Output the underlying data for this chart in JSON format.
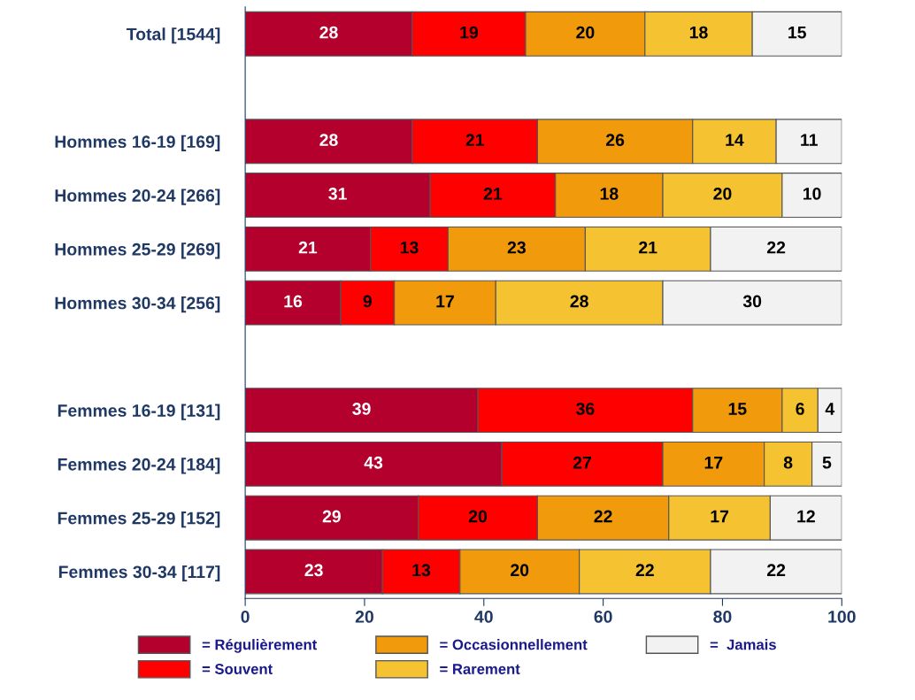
{
  "chart_data": {
    "type": "bar",
    "orientation": "horizontal",
    "stacked": true,
    "data_labels": true,
    "grid": false,
    "legend": "bottom",
    "categories": [
      "Total [1544]",
      null,
      "Hommes 16-19 [169]",
      "Hommes 20-24 [266]",
      "Hommes 25-29 [269]",
      "Hommes 30-34 [256]",
      null,
      "Femmes 16-19 [131]",
      "Femmes 20-24 [184]",
      "Femmes 25-29 [152]",
      "Femmes 30-34 [117]"
    ],
    "xlim": [
      0,
      100
    ],
    "xticks": [
      0,
      20,
      40,
      60,
      80,
      100
    ],
    "series": [
      {
        "name": "= Régulièrement",
        "color": "#b3002d",
        "values": [
          28,
          null,
          28,
          31,
          21,
          16,
          null,
          39,
          43,
          29,
          23
        ]
      },
      {
        "name": "= Souvent",
        "color": "#ff0000",
        "values": [
          19,
          null,
          21,
          21,
          13,
          9,
          null,
          36,
          27,
          20,
          13
        ]
      },
      {
        "name": "= Occasionnellement",
        "color": "#f09a0c",
        "values": [
          20,
          null,
          26,
          18,
          23,
          17,
          null,
          15,
          17,
          22,
          20
        ]
      },
      {
        "name": "= Rarement",
        "color": "#f5c232",
        "values": [
          18,
          null,
          14,
          20,
          21,
          28,
          null,
          6,
          8,
          17,
          22
        ]
      },
      {
        "name": "=  Jamais",
        "color": "#f2f2f2",
        "values": [
          15,
          null,
          11,
          10,
          22,
          30,
          null,
          4,
          5,
          12,
          22
        ]
      }
    ]
  }
}
